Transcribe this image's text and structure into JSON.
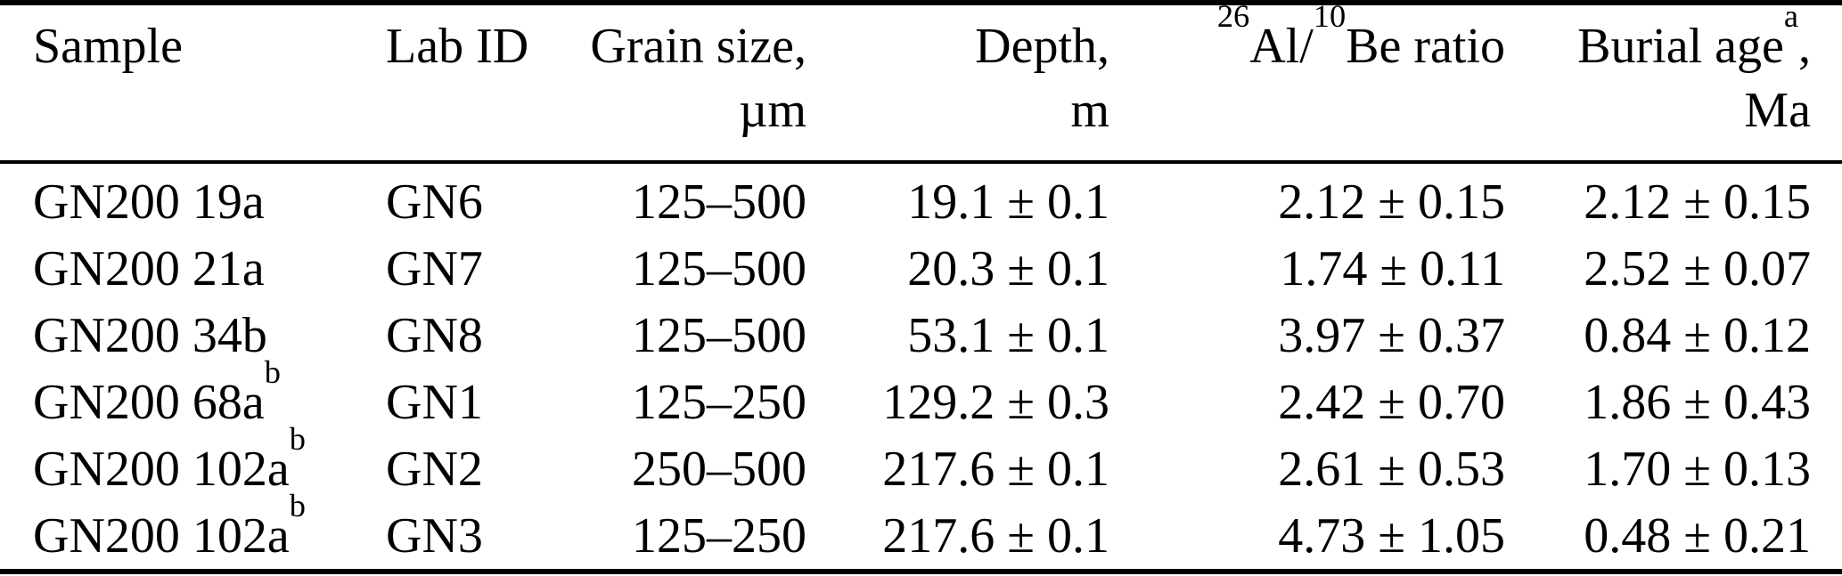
{
  "table": {
    "columns": {
      "sample": "Sample",
      "lab_id": "Lab ID",
      "grain_line1": "Grain size,",
      "grain_line2": "µm",
      "depth_line1": "Depth,",
      "depth_line2": "m",
      "ratio_sup1": "26",
      "ratio_text1": "Al/",
      "ratio_sup2": "10",
      "ratio_text2": "Be ratio",
      "burial_text": "Burial age",
      "burial_sup": "a",
      "burial_comma": ",",
      "burial_line2": "Ma"
    },
    "rows": [
      {
        "sample": "GN200 19a",
        "sample_sup": "",
        "lab_id": "GN6",
        "grain_size": "125–500",
        "depth": "19.1 ± 0.1",
        "ratio": "2.12 ± 0.15",
        "burial_age": "2.12 ± 0.15"
      },
      {
        "sample": "GN200 21a",
        "sample_sup": "",
        "lab_id": "GN7",
        "grain_size": "125–500",
        "depth": "20.3 ± 0.1",
        "ratio": "1.74 ± 0.11",
        "burial_age": "2.52 ± 0.07"
      },
      {
        "sample": "GN200 34b",
        "sample_sup": "",
        "lab_id": "GN8",
        "grain_size": "125–500",
        "depth": "53.1 ± 0.1",
        "ratio": "3.97 ± 0.37",
        "burial_age": "0.84 ± 0.12"
      },
      {
        "sample": "GN200 68a",
        "sample_sup": "b",
        "lab_id": "GN1",
        "grain_size": "125–250",
        "depth": "129.2 ± 0.3",
        "ratio": "2.42 ± 0.70",
        "burial_age": "1.86 ± 0.43"
      },
      {
        "sample": "GN200 102a",
        "sample_sup": "b",
        "lab_id": "GN2",
        "grain_size": "250–500",
        "depth": "217.6 ± 0.1",
        "ratio": "2.61 ± 0.53",
        "burial_age": "1.70 ± 0.13"
      },
      {
        "sample": "GN200 102a",
        "sample_sup": "b",
        "lab_id": "GN3",
        "grain_size": "125–250",
        "depth": "217.6 ± 0.1",
        "ratio": "4.73 ± 1.05",
        "burial_age": "0.48 ± 0.21"
      }
    ]
  }
}
